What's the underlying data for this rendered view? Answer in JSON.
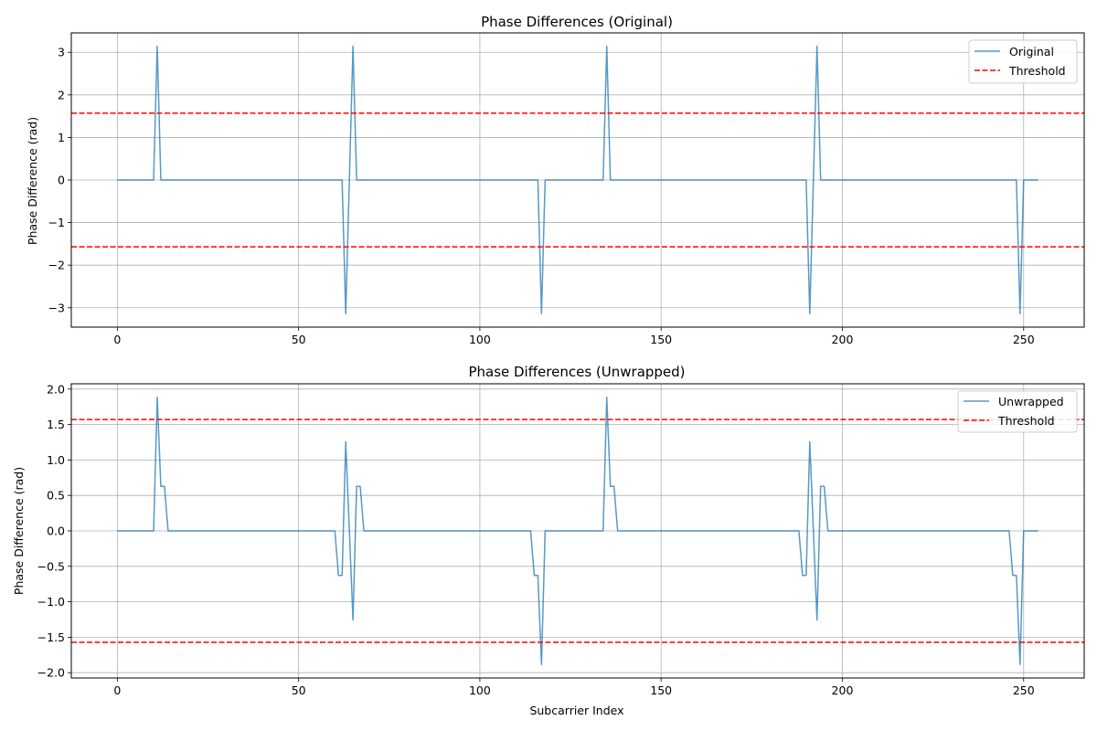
{
  "chart_data": [
    {
      "type": "line",
      "title": "Phase Differences (Original)",
      "xlabel": "",
      "ylabel": "Phase Difference (rad)",
      "xlim": [
        -12.7,
        266.7
      ],
      "ylim": [
        -3.456,
        3.456
      ],
      "xticks": [
        0,
        50,
        100,
        150,
        200,
        250
      ],
      "yticks": [
        -3,
        -2,
        -1,
        0,
        1,
        2,
        3
      ],
      "ytick_labels": [
        "−3",
        "−2",
        "−1",
        "0",
        "1",
        "2",
        "3"
      ],
      "grid": true,
      "legend_position": "top-right",
      "series": [
        {
          "name": "Original",
          "color": "#1f77b4",
          "style": "solid",
          "x": [
            0,
            10,
            11,
            12,
            62,
            63,
            64,
            65,
            66,
            116,
            117,
            118,
            134,
            135,
            136,
            190,
            191,
            192,
            193,
            194,
            248,
            249,
            250,
            254
          ],
          "y": [
            0,
            0,
            3.1416,
            0,
            0,
            -3.1416,
            0,
            3.1416,
            0,
            0,
            -3.1416,
            0,
            0,
            3.1416,
            0,
            0,
            -3.1416,
            0,
            3.1416,
            0,
            0,
            -3.1416,
            0,
            0
          ]
        },
        {
          "name": "Threshold",
          "color": "#ff0000",
          "style": "dashed",
          "hlines": [
            1.5708,
            -1.5708
          ]
        }
      ]
    },
    {
      "type": "line",
      "title": "Phase Differences (Unwrapped)",
      "xlabel": "Subcarrier Index",
      "ylabel": "Phase Difference (rad)",
      "xlim": [
        -12.7,
        266.7
      ],
      "ylim": [
        -2.075,
        2.075
      ],
      "xticks": [
        0,
        50,
        100,
        150,
        200,
        250
      ],
      "yticks": [
        -2.0,
        -1.5,
        -1.0,
        -0.5,
        0.0,
        0.5,
        1.0,
        1.5,
        2.0
      ],
      "ytick_labels": [
        "−2.0",
        "−1.5",
        "−1.0",
        "−0.5",
        "0.0",
        "0.5",
        "1.0",
        "1.5",
        "2.0"
      ],
      "grid": true,
      "legend_position": "top-right",
      "series": [
        {
          "name": "Unwrapped",
          "color": "#1f77b4",
          "style": "solid",
          "x": [
            0,
            10,
            11,
            12,
            13,
            14,
            60,
            61,
            62,
            63,
            64,
            65,
            66,
            67,
            68,
            114,
            115,
            116,
            117,
            118,
            134,
            135,
            136,
            137,
            138,
            188,
            189,
            190,
            191,
            192,
            193,
            194,
            195,
            196,
            246,
            247,
            248,
            249,
            250,
            254
          ],
          "y": [
            0,
            0,
            1.885,
            0.628,
            0.628,
            0,
            0,
            -0.628,
            -0.628,
            1.257,
            0,
            -1.257,
            0.628,
            0.628,
            0,
            0,
            -0.628,
            -0.628,
            -1.885,
            0,
            0,
            1.885,
            0.628,
            0.628,
            0,
            0,
            -0.628,
            -0.628,
            1.257,
            0,
            -1.257,
            0.628,
            0.628,
            0,
            0,
            -0.628,
            -0.628,
            -1.885,
            0,
            0
          ]
        },
        {
          "name": "Threshold",
          "color": "#ff0000",
          "style": "dashed",
          "hlines": [
            1.5708,
            -1.5708
          ]
        }
      ]
    }
  ]
}
